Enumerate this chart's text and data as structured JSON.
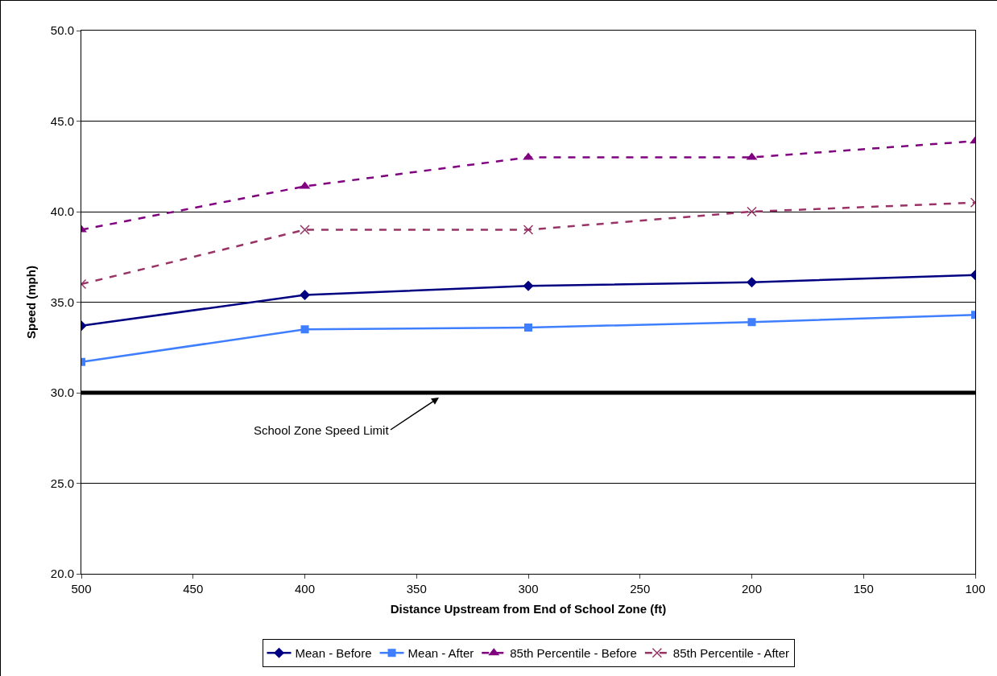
{
  "chart_data": {
    "type": "line",
    "xlabel": "Distance Upstream from End of School Zone (ft)",
    "ylabel": "Speed (mph)",
    "x": [
      500,
      400,
      300,
      200,
      100
    ],
    "xlim": [
      500,
      100
    ],
    "xticks": [
      500,
      450,
      400,
      350,
      300,
      250,
      200,
      150,
      100
    ],
    "ylim": [
      20,
      50
    ],
    "yticks": [
      {
        "value": 20,
        "label": "20.0"
      },
      {
        "value": 25,
        "label": "25.0"
      },
      {
        "value": 30,
        "label": "30.0"
      },
      {
        "value": 35,
        "label": "35.0"
      },
      {
        "value": 40,
        "label": "40.0"
      },
      {
        "value": 45,
        "label": "45.0"
      },
      {
        "value": 50,
        "label": "50.0"
      }
    ],
    "grid": "y",
    "legend": "bottom",
    "series": [
      {
        "name": "Mean - Before",
        "color": "#000080",
        "marker": "diamond",
        "line_style": "solid",
        "values": [
          33.7,
          35.4,
          35.9,
          36.1,
          36.5
        ]
      },
      {
        "name": "Mean - After",
        "color": "#3f7fff",
        "marker": "square",
        "line_style": "solid",
        "values": [
          31.7,
          33.5,
          33.6,
          33.9,
          34.3
        ]
      },
      {
        "name": "85th Percentile - Before",
        "color": "#800080",
        "marker": "triangle",
        "line_style": "dashed",
        "values": [
          39.0,
          41.4,
          43.0,
          43.0,
          43.9
        ]
      },
      {
        "name": "85th Percentile - After",
        "color": "#993366",
        "marker": "cross",
        "line_style": "dashed",
        "values": [
          36.0,
          39.0,
          39.0,
          40.0,
          40.5
        ]
      }
    ],
    "ref_lines": [
      {
        "axis": "y",
        "value": 30,
        "color": "#000000",
        "line_style": "solid",
        "label": "School Zone Speed Limit"
      }
    ]
  }
}
